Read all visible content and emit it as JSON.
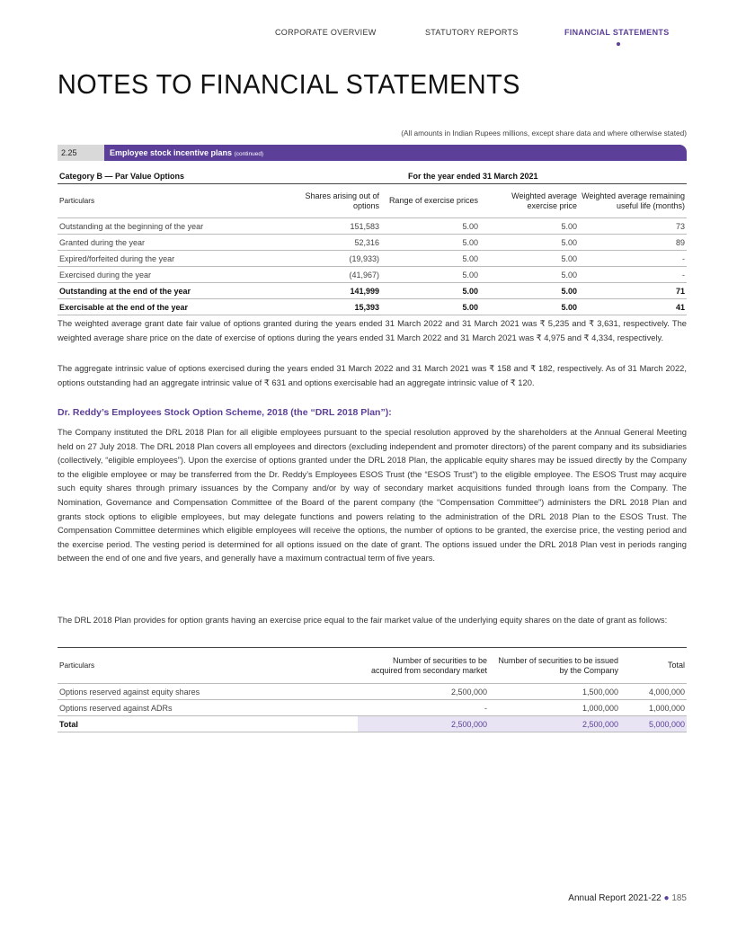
{
  "header": {
    "nav": [
      "CORPORATE OVERVIEW",
      "STATUTORY REPORTS",
      "FINANCIAL STATEMENTS"
    ],
    "title": "NOTES TO FINANCIAL STATEMENTS",
    "note": "(All amounts in Indian Rupees millions, except share data and where otherwise stated)"
  },
  "section": {
    "number": "2.25",
    "title": "Employee stock incentive plans",
    "suffix": "(continued)"
  },
  "table1": {
    "category": "Category B — Par Value Options",
    "period": "For the year ended 31 March 2021",
    "headers": [
      "Particulars",
      "Shares arising out of options",
      "Range of exercise prices",
      "Weighted average exercise price",
      "Weighted average remaining useful life (months)"
    ],
    "rows": [
      [
        "Outstanding at the beginning of the year",
        "151,583",
        "5.00",
        "5.00",
        "73"
      ],
      [
        "Granted during the year",
        "52,316",
        "5.00",
        "5.00",
        "89"
      ],
      [
        "Expired/forfeited during the year",
        "(19,933)",
        "5.00",
        "5.00",
        "-"
      ],
      [
        "Exercised during the year",
        "(41,967)",
        "5.00",
        "5.00",
        "-"
      ],
      [
        "Outstanding at the end of the year",
        "141,999",
        "5.00",
        "5.00",
        "71"
      ],
      [
        "Exercisable at the end of the year",
        "15,393",
        "5.00",
        "5.00",
        "41"
      ]
    ]
  },
  "paragraphs": [
    "The weighted average grant date fair value of options granted during the years ended 31 March 2022 and 31 March 2021 was ₹ 5,235 and ₹ 3,631, respectively. The weighted average share price on the date of exercise of options during the years ended 31 March 2022 and 31 March 2021 was ₹ 4,975 and ₹ 4,334, respectively.",
    "The aggregate intrinsic value of options exercised during the years ended 31 March 2022 and 31 March 2021 was ₹ 158 and ₹ 182, respectively. As of 31 March 2022, options outstanding had an aggregate intrinsic value of ₹ 631 and options exercisable had an aggregate intrinsic value of ₹ 120.",
    "The Company instituted the DRL 2018 Plan for all eligible employees pursuant to the special resolution approved by the shareholders at the Annual General Meeting held on 27 July 2018. The DRL 2018 Plan covers all employees and directors (excluding independent and promoter directors) of the parent company and its subsidiaries (collectively, “eligible employees”). Upon the exercise of options granted under the DRL 2018 Plan, the applicable equity shares may be issued directly by the Company to the eligible employee or may be transferred from the Dr. Reddy’s Employees ESOS Trust (the “ESOS Trust”) to the eligible employee. The ESOS Trust may acquire such equity shares through primary issuances by the Company and/or by way of secondary market acquisitions funded through loans from the Company. The Nomination, Governance and Compensation Committee of the Board of the parent company (the “Compensation Committee”) administers the DRL 2018 Plan and grants stock options to eligible employees, but may delegate functions and powers relating to the administration of the DRL 2018 Plan to the ESOS Trust. The Compensation Committee determines which eligible employees will receive the options, the number of options to be granted, the exercise price, the vesting period and the exercise period. The vesting period is determined for all options issued on the date of grant. The options issued under the DRL 2018 Plan vest in periods ranging between the end of one and five years, and generally have a maximum contractual term of five years.",
    "The DRL 2018 Plan provides for option grants having an exercise price equal to the fair market value of the underlying equity shares on the date of grant as follows:"
  ],
  "subheading": "Dr. Reddy’s Employees Stock Option Scheme, 2018 (the “DRL 2018 Plan”):",
  "table2": {
    "headers": [
      "Particulars",
      "Number of securities to be acquired from secondary market",
      "Number of securities to be issued by the Company",
      "Total"
    ],
    "rows": [
      [
        "Options reserved against equity shares",
        "2,500,000",
        "1,500,000",
        "4,000,000"
      ],
      [
        "Options reserved against ADRs",
        "-",
        "1,000,000",
        "1,000,000"
      ],
      [
        "Total",
        "2,500,000",
        "2,500,000",
        "5,000,000"
      ]
    ]
  },
  "footer": {
    "label": "Annual Report 2021-22",
    "page": "185"
  },
  "colors": {
    "accent": "#5b3f98"
  }
}
